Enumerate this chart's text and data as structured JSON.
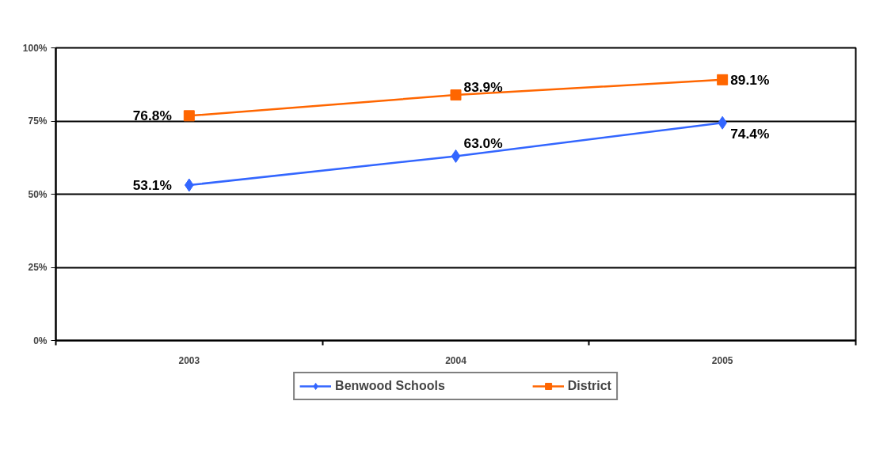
{
  "chart_data": {
    "type": "line",
    "categories": [
      "2003",
      "2004",
      "2005"
    ],
    "series": [
      {
        "name": "Benwood Schools",
        "color": "#3366ff",
        "marker": "diamond",
        "values": [
          53.1,
          63.0,
          74.4
        ],
        "value_labels": [
          "53.1%",
          "63.0%",
          "74.4%"
        ]
      },
      {
        "name": "District",
        "color": "#ff6600",
        "marker": "square",
        "values": [
          76.8,
          83.9,
          89.1
        ],
        "value_labels": [
          "76.8%",
          "83.9%",
          "89.1%"
        ]
      }
    ],
    "ylim": [
      0,
      100
    ],
    "yticks": [
      {
        "value": 0,
        "label": "0%"
      },
      {
        "value": 25,
        "label": "25%"
      },
      {
        "value": 50,
        "label": "50%"
      },
      {
        "value": 75,
        "label": "75%"
      },
      {
        "value": 100,
        "label": "100%"
      }
    ],
    "grid": "y",
    "legend": "bottom"
  }
}
